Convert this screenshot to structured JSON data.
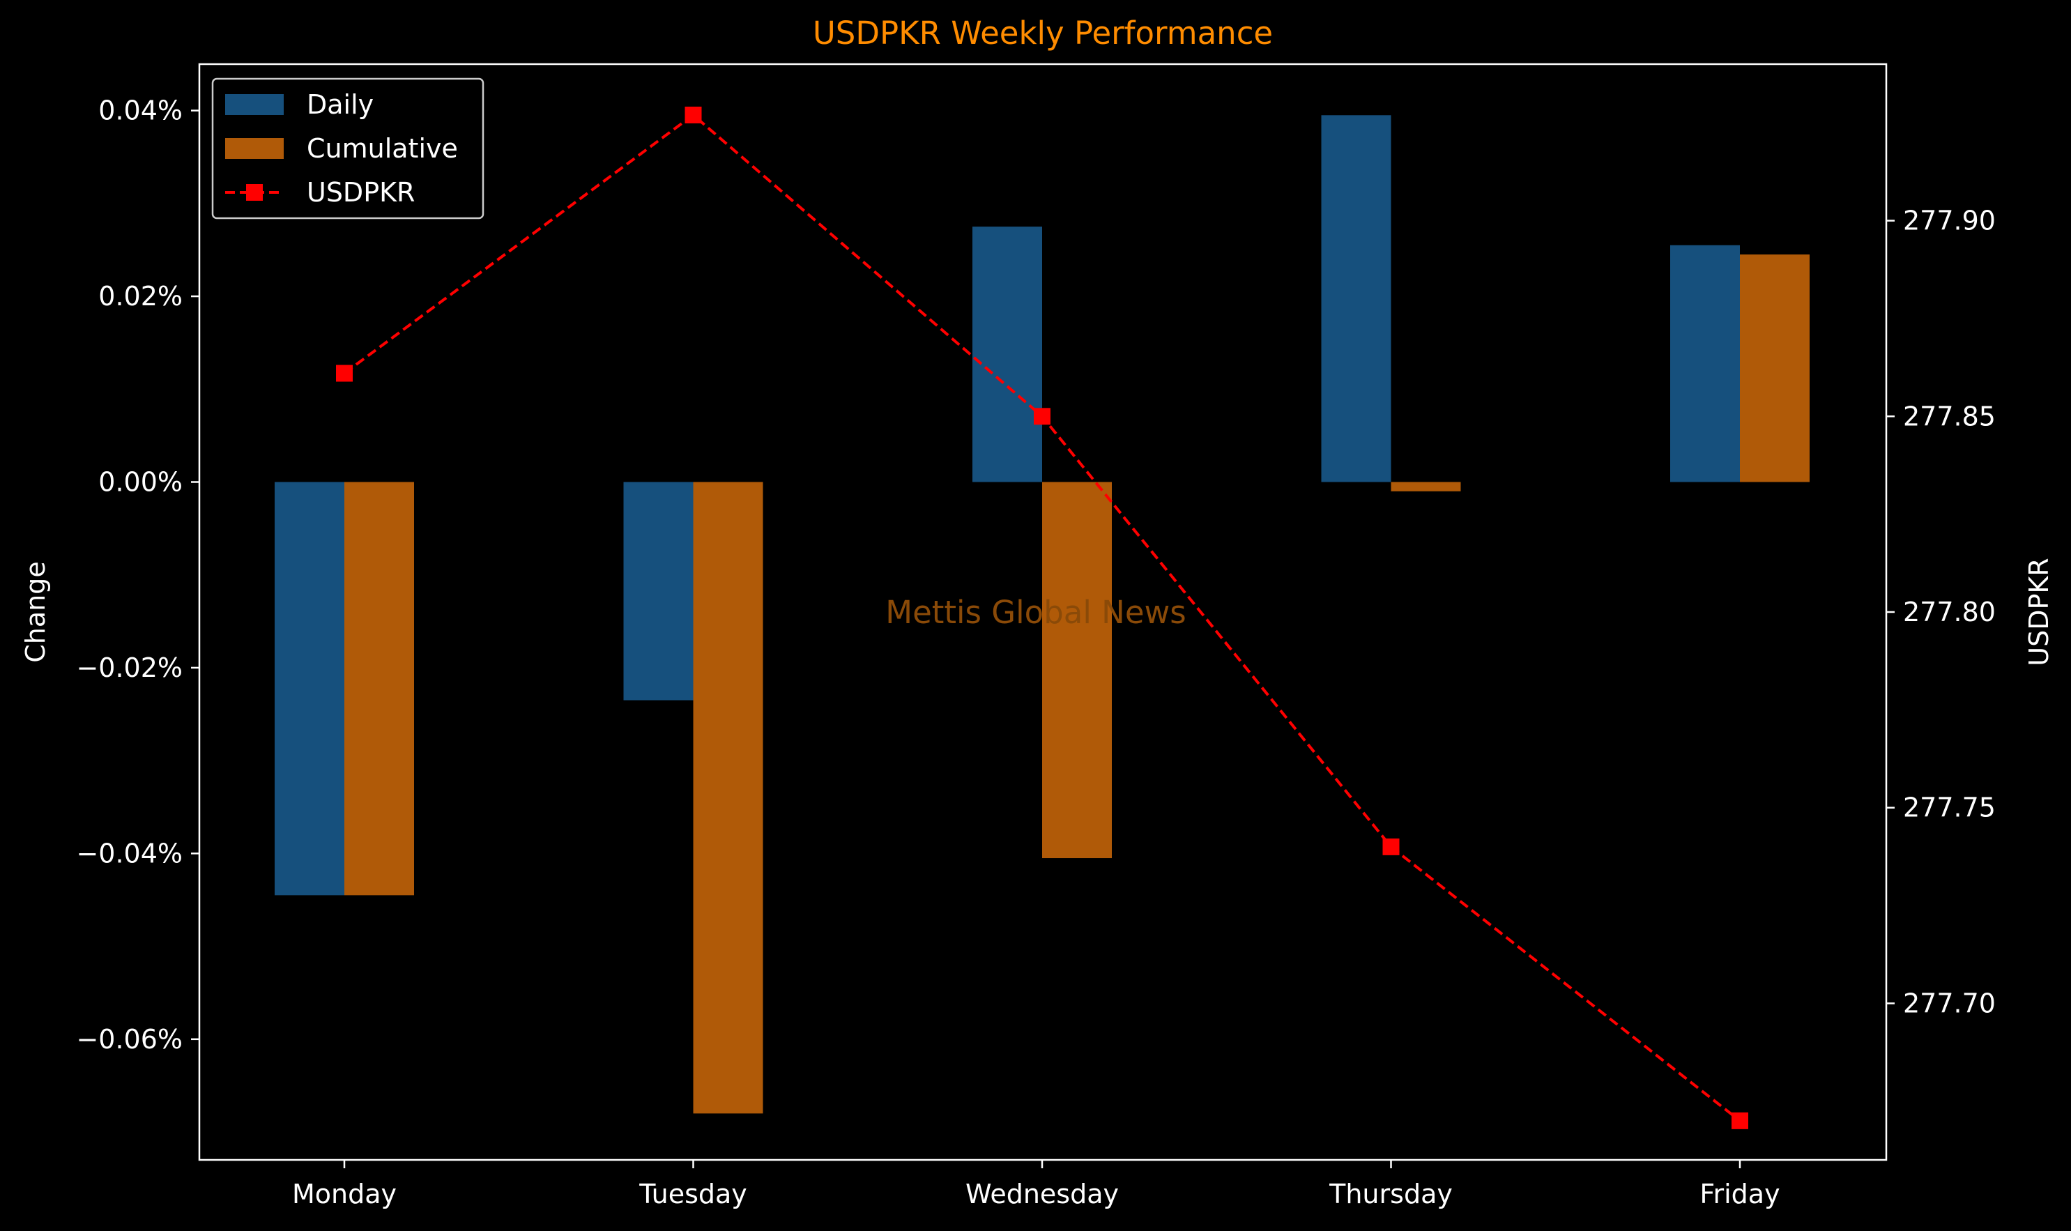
{
  "chart_data": {
    "type": "bar",
    "title": "USDPKR Weekly Performance",
    "watermark": "Mettis Global News",
    "categories": [
      "Monday",
      "Tuesday",
      "Wednesday",
      "Thursday",
      "Friday"
    ],
    "ylabel": "Change",
    "y2label": "USDPKR",
    "ylim": [
      -0.073,
      0.045
    ],
    "y2lim": [
      277.66,
      277.94
    ],
    "yticks": [
      0.04,
      0.02,
      0.0,
      -0.02,
      -0.04,
      -0.06
    ],
    "ytick_labels": [
      "0.04%",
      "0.02%",
      "0.00%",
      "−0.02%",
      "−0.04%",
      "−0.06%"
    ],
    "y2ticks": [
      277.9,
      277.85,
      277.8,
      277.75,
      277.7
    ],
    "y2tick_labels": [
      "277.90",
      "277.85",
      "277.80",
      "277.75",
      "277.70"
    ],
    "series": [
      {
        "name": "Daily",
        "kind": "bar",
        "color": "#16507d",
        "values": [
          -0.0445,
          -0.0235,
          0.0275,
          0.0395,
          0.0255
        ]
      },
      {
        "name": "Cumulative",
        "kind": "bar",
        "color": "#b05a08",
        "values": [
          -0.0445,
          -0.068,
          -0.0405,
          -0.001,
          0.0245
        ]
      },
      {
        "name": "USDPKR",
        "kind": "line",
        "axis": "right",
        "color": "#ff0000",
        "line_style": "dashed",
        "marker": "square",
        "values": [
          277.861,
          277.927,
          277.85,
          277.74,
          277.67
        ]
      }
    ],
    "legend": {
      "placement": "top-left",
      "labels": [
        "Daily",
        "Cumulative",
        "USDPKR"
      ]
    },
    "grid": false,
    "colors": {
      "background": "#000000",
      "axes": "#ffffff",
      "title": "#ff8c00",
      "watermark": "#8a4a08"
    }
  }
}
